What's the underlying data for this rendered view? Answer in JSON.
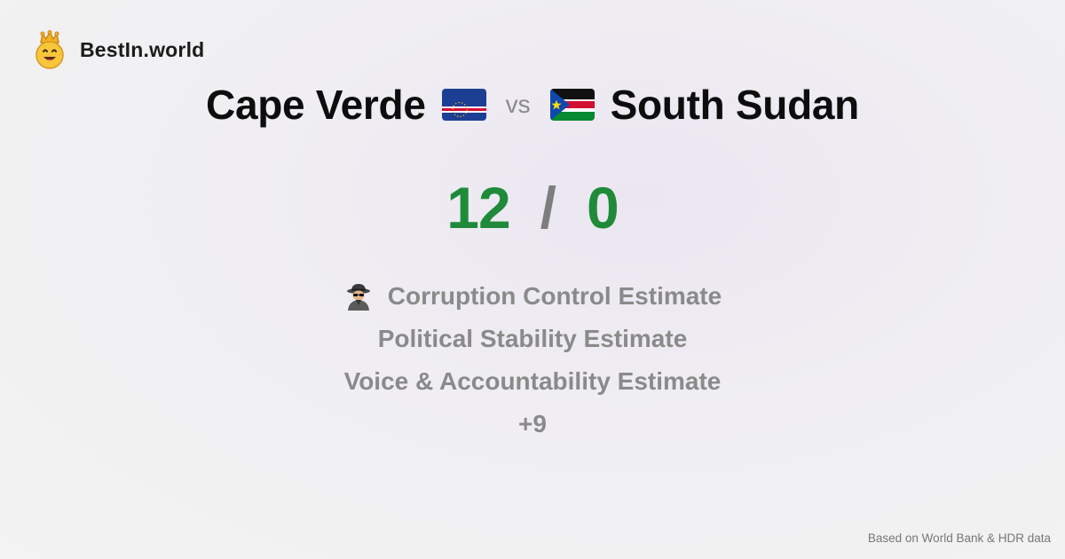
{
  "brand": {
    "name": "BestIn.world",
    "logo_icon": "crowned-smiley-icon"
  },
  "comparison": {
    "left_country": {
      "name": "Cape Verde",
      "flag_icon": "cape-verde-flag-icon",
      "score": "12"
    },
    "vs_label": "vs",
    "right_country": {
      "name": "South Sudan",
      "flag_icon": "south-sudan-flag-icon",
      "score": "0"
    },
    "score_separator": "/"
  },
  "metrics": {
    "items": [
      {
        "icon": "detective-icon",
        "label": "Corruption Control Estimate"
      },
      {
        "label": "Political Stability Estimate"
      },
      {
        "label": "Voice & Accountability Estimate"
      }
    ],
    "more_label": "+9"
  },
  "footer": {
    "source_note": "Based on World Bank & HDR data"
  },
  "colors": {
    "score_green": "#1f8b3a",
    "muted_gray": "#8a8a8a",
    "brand_gold": "#f5b323"
  }
}
